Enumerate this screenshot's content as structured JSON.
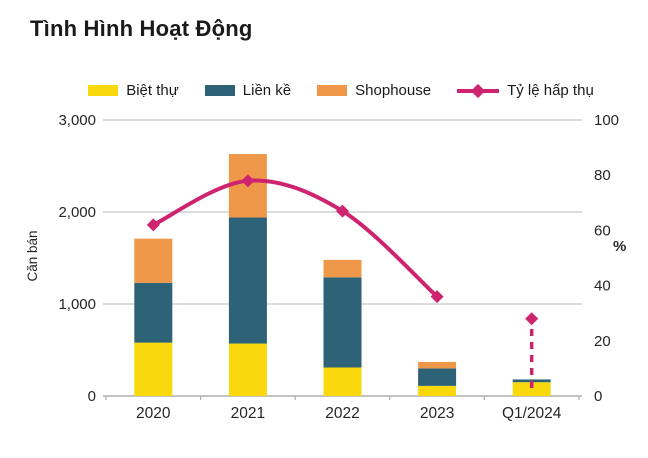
{
  "title": "Tình Hình Hoạt Động",
  "colors": {
    "biet_thu": "#F9D90E",
    "lien_ke": "#2E6377",
    "shophouse": "#F0984A",
    "ty_le_hap_thu": "#CE2470",
    "gridline": "#C8C8C8",
    "axis_line": "#AFAFAF",
    "text": "#262626"
  },
  "chart_data": {
    "type": "bar",
    "subtype": "stacked-bars-with-line",
    "title": "Tình Hình Hoạt Động",
    "categories": [
      "2020",
      "2021",
      "2022",
      "2023",
      "Q1/2024"
    ],
    "series": [
      {
        "name": "Biệt thự",
        "color": "#F9D90E",
        "values": [
          580,
          570,
          310,
          110,
          150
        ]
      },
      {
        "name": "Liền kề",
        "color": "#2E6377",
        "values": [
          650,
          1370,
          980,
          190,
          30
        ]
      },
      {
        "name": "Shophouse",
        "color": "#F0984A",
        "values": [
          480,
          690,
          190,
          70,
          0
        ]
      }
    ],
    "line": {
      "name": "Tỷ lệ hấp thụ",
      "color": "#CE2470",
      "values": [
        62,
        78,
        67,
        36,
        28
      ],
      "last_point_dashed": true
    },
    "left_axis": {
      "title": "Căn bán",
      "ticks": [
        "0",
        "1,000",
        "2,000",
        "3,000"
      ],
      "min": 0,
      "max": 3000
    },
    "right_axis": {
      "title": "%",
      "ticks": [
        "0",
        "20",
        "40",
        "60",
        "80",
        "100"
      ],
      "min": 0,
      "max": 100
    },
    "grid": "horizontal",
    "legend_position": "top"
  }
}
